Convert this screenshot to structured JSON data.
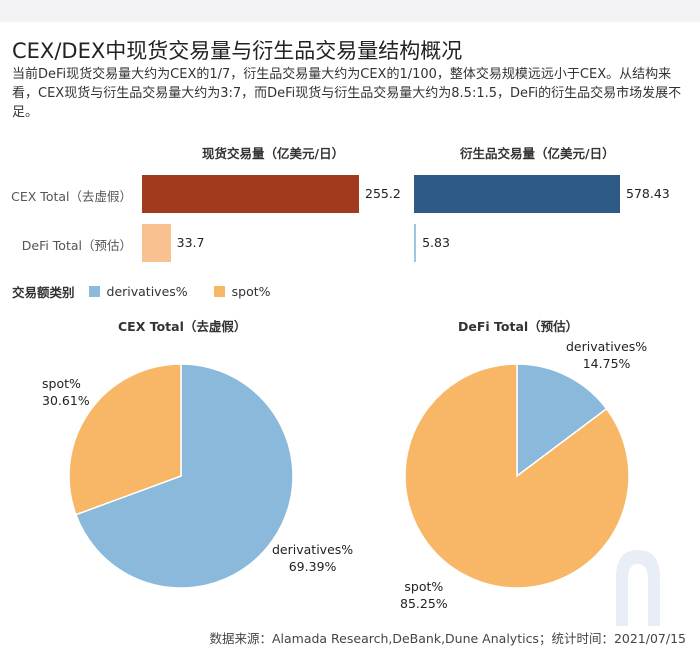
{
  "title": "CEX/DEX中现货交易量与衍生品交易量结构概况",
  "description": "当前DeFi现货交易量大约为CEX的1/7，衍生品交易量大约为CEX的1/100，整体交易规模远远小于CEX。从结构来看，CEX现货与衍生品交易量大约为3:7，而DeFi现货与衍生品交易量大约为8.5:1.5，DeFi的衍生品交易市场发展不足。",
  "source": "数据来源：Alamada Research,DeBank,Dune Analytics；统计时间：2021/07/15",
  "colors": {
    "cex_spot": "#a23a20",
    "defi_spot": "#f7c28f",
    "cex_derivatives": "#2d5a87",
    "defi_derivatives": "#9ec6e3",
    "pie_derivatives": "#8ab9db",
    "pie_spot": "#f8b667"
  },
  "chart_data": [
    {
      "type": "bar",
      "title": "现货交易量（亿美元/日）",
      "categories": [
        "CEX Total（去虚假）",
        "DeFi Total（预估）"
      ],
      "values": [
        255.2,
        33.7
      ],
      "value_labels": [
        "255.2",
        "33.7"
      ],
      "xlim": [
        0,
        255.2
      ]
    },
    {
      "type": "bar",
      "title": "衍生品交易量（亿美元/日）",
      "categories": [
        "CEX Total（去虚假）",
        "DeFi Total（预估）"
      ],
      "values": [
        578.43,
        5.83
      ],
      "value_labels": [
        "578.43",
        "5.83"
      ],
      "xlim": [
        0,
        578.43
      ]
    },
    {
      "type": "pie",
      "title": "CEX Total（去虚假）",
      "legend_title": "交易额类别",
      "slices": [
        {
          "name": "derivatives%",
          "value": 69.39,
          "label": "69.39%"
        },
        {
          "name": "spot%",
          "value": 30.61,
          "label": "30.61%"
        }
      ]
    },
    {
      "type": "pie",
      "title": "DeFi Total（预估）",
      "slices": [
        {
          "name": "derivatives%",
          "value": 14.75,
          "label": "14.75%"
        },
        {
          "name": "spot%",
          "value": 85.25,
          "label": "85.25%"
        }
      ]
    }
  ]
}
